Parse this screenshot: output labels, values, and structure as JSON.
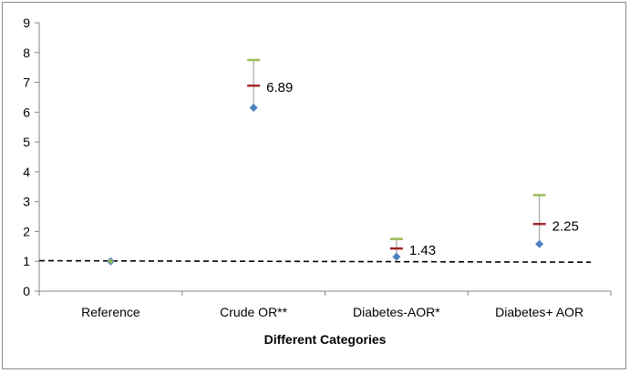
{
  "chart_data": {
    "type": "scatter",
    "title": "",
    "xlabel": "Different Categories",
    "ylabel": "",
    "ylim": [
      0,
      9
    ],
    "yticks": [
      "0",
      "1",
      "2",
      "3",
      "4",
      "5",
      "6",
      "7",
      "8",
      "9"
    ],
    "categories": [
      "Reference",
      "Crude OR**",
      "Diabetes-AOR*",
      "Diabetes+ AOR"
    ],
    "series": [
      {
        "role": "upper",
        "values": [
          1.0,
          7.75,
          1.75,
          3.22
        ],
        "color": "#9bbb59",
        "marker": "dash"
      },
      {
        "role": "estimate",
        "values": [
          1.0,
          6.89,
          1.43,
          2.25
        ],
        "color": "#a0282a",
        "marker": "dash"
      },
      {
        "role": "lower",
        "values": [
          1.0,
          6.15,
          1.15,
          1.58
        ],
        "color": "#4f81bd",
        "marker": "diamond"
      }
    ],
    "data_labels": [
      "",
      "6.89",
      "1.43",
      "2.25"
    ],
    "reference_line": {
      "y_start": 1.02,
      "y_end": 0.97,
      "style": "dashed",
      "color": "#000000"
    },
    "grid": false,
    "legend": "none"
  }
}
